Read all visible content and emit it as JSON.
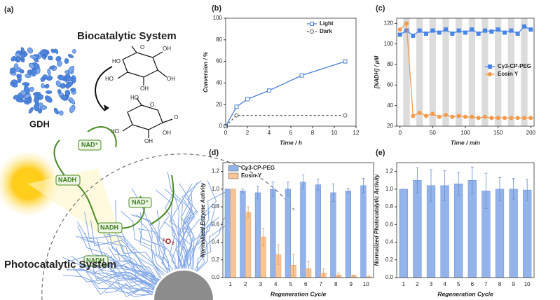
{
  "diagram": {
    "panel": "(a)",
    "title_top": "Biocatalytic System",
    "title_bottom": "Photocatalytic System",
    "enzyme": "GDH",
    "cofactors": [
      "NAD⁺",
      "NADH",
      "NAD⁺",
      "NADH",
      "NADH"
    ],
    "oxygen": "¹O₂",
    "glucose_labels": [
      "HO",
      "O",
      "OH",
      "HO",
      "OH",
      "OH"
    ],
    "lactone_labels": [
      "HO",
      "O",
      "O",
      "HO",
      "OH",
      "OH"
    ]
  },
  "chart_data": [
    {
      "type": "line",
      "panel": "(b)",
      "xlabel": "Time / h",
      "ylabel": "Conversion / %",
      "xlim": [
        0,
        12
      ],
      "xticks": [
        0,
        2,
        4,
        6,
        8,
        10,
        12
      ],
      "ylim": [
        0,
        100
      ],
      "yticks": [
        0,
        20,
        40,
        60,
        80,
        100
      ],
      "legend": "upper right",
      "series": [
        {
          "name": "Light",
          "color": "#4a7fd9",
          "marker": "square",
          "filled": false,
          "dashed": false,
          "x": [
            0,
            1,
            2,
            4,
            7,
            11
          ],
          "values": [
            0,
            18,
            25,
            33,
            47,
            60
          ]
        },
        {
          "name": "Dark",
          "color": "#555555",
          "marker": "circle",
          "filled": false,
          "dashed": true,
          "x": [
            0,
            1,
            11
          ],
          "values": [
            0,
            10,
            10
          ]
        }
      ]
    },
    {
      "type": "line",
      "panel": "(c)",
      "xlabel": "Time / min",
      "ylabel": "[NADH] / μM",
      "xlim": [
        -5,
        205
      ],
      "xticks": [
        0,
        50,
        100,
        150,
        200
      ],
      "ylim": [
        20,
        125
      ],
      "yticks": [
        20,
        40,
        60,
        80,
        100,
        120
      ],
      "legend": "center right",
      "shading": true,
      "x": [
        0,
        10,
        20,
        30,
        40,
        50,
        60,
        70,
        80,
        90,
        100,
        110,
        120,
        130,
        140,
        150,
        160,
        170,
        180,
        190,
        200
      ],
      "series": [
        {
          "name": "Cy3-CP-PEG",
          "color": "#4a86e8",
          "marker": "square",
          "filled": true,
          "dashed": false,
          "values": [
            109,
            113,
            108,
            113,
            110,
            113,
            111,
            114,
            110,
            113,
            111,
            114,
            110,
            113,
            112,
            114,
            111,
            113,
            110,
            117,
            114
          ]
        },
        {
          "name": "Eosin Y",
          "color": "#f39a4b",
          "marker": "circle",
          "filled": true,
          "dashed": false,
          "values": [
            114,
            120,
            30,
            33,
            30,
            32,
            29,
            31,
            29,
            30,
            29,
            29,
            28,
            29,
            28,
            28,
            28,
            28,
            28,
            28,
            28
          ]
        }
      ]
    },
    {
      "type": "bar",
      "panel": "(d)",
      "xlabel": "Regeneration Cycle",
      "ylabel": "Normalized Enzyme Activity",
      "categories": [
        "1",
        "2",
        "3",
        "4",
        "5",
        "6",
        "7",
        "8",
        "9",
        "10"
      ],
      "ylim": [
        0,
        1.3
      ],
      "yticks": [
        {
          "value": 0,
          "label": "0.0"
        },
        0.2,
        0.4,
        0.6,
        0.8,
        {
          "value": 1,
          "label": "1.0"
        },
        1.2
      ],
      "legend": "upper left",
      "series": [
        {
          "name": "Cy3-CP-PEG",
          "color": "#93b3ea",
          "values": [
            1.0,
            0.98,
            0.96,
            1.0,
            1.0,
            1.08,
            1.05,
            0.96,
            0.98,
            1.04
          ],
          "errors": [
            0,
            0.02,
            0.07,
            0.08,
            0.08,
            0.08,
            0.06,
            0.1,
            0.03,
            0.08
          ]
        },
        {
          "name": "Eosin Y",
          "color": "#f7c596",
          "values": [
            1.0,
            0.74,
            0.46,
            0.26,
            0.14,
            0.1,
            0.05,
            0.03,
            0.02,
            0.01
          ],
          "errors": [
            0,
            0.06,
            0.1,
            0.11,
            0.12,
            0.08,
            0.05,
            0.02,
            0.01,
            0.01
          ]
        }
      ]
    },
    {
      "type": "bar",
      "panel": "(e)",
      "xlabel": "Regeneration Cycle",
      "ylabel": "Normalized Photocatalytic Activity",
      "categories": [
        "1",
        "2",
        "3",
        "4",
        "5",
        "6",
        "7",
        "8",
        "9",
        "10"
      ],
      "ylim": [
        0,
        1.3
      ],
      "yticks": [
        {
          "value": 0,
          "label": "0.0"
        },
        0.2,
        0.4,
        0.6,
        0.8,
        {
          "value": 1,
          "label": "1.0"
        },
        1.2
      ],
      "series": [
        {
          "color": "#93b3ea",
          "values": [
            1.0,
            1.1,
            1.04,
            1.04,
            1.06,
            1.1,
            0.98,
            1.0,
            1.0,
            0.99
          ],
          "errors": [
            0,
            0.14,
            0.18,
            0.17,
            0.13,
            0.15,
            0.2,
            0.13,
            0.12,
            0.12
          ]
        }
      ]
    }
  ]
}
